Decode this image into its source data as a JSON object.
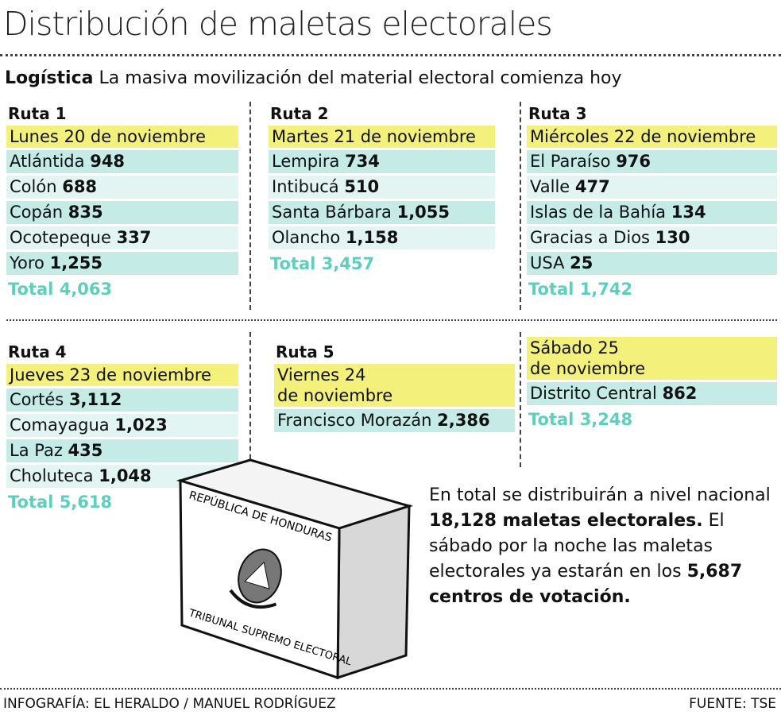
{
  "title": "Distribución de maletas electorales",
  "subtitle": {
    "lead": "Logística",
    "text": "La masiva movilización del material electoral comienza hoy"
  },
  "routes": [
    {
      "name": "Ruta 1",
      "date": "Lunes 20 de noviembre",
      "rows": [
        {
          "place": "Atlántida",
          "count": "948"
        },
        {
          "place": "Colón",
          "count": "688"
        },
        {
          "place": "Copán",
          "count": "835"
        },
        {
          "place": "Ocotepeque",
          "count": "337"
        },
        {
          "place": "Yoro",
          "count": "1,255"
        }
      ],
      "total": {
        "label": "Total",
        "value": "4,063"
      }
    },
    {
      "name": "Ruta 2",
      "date": "Martes 21 de noviembre",
      "rows": [
        {
          "place": "Lempira",
          "count": "734"
        },
        {
          "place": "Intibucá",
          "count": "510"
        },
        {
          "place": "Santa Bárbara",
          "count": "1,055"
        },
        {
          "place": "Olancho",
          "count": "1,158"
        }
      ],
      "total": {
        "label": "Total",
        "value": "3,457"
      }
    },
    {
      "name": "Ruta 3",
      "date": "Miércoles 22 de noviembre",
      "rows": [
        {
          "place": "El Paraíso",
          "count": "976"
        },
        {
          "place": "Valle",
          "count": "477"
        },
        {
          "place": "Islas de la Bahía",
          "count": "134"
        },
        {
          "place": "Gracias a Dios",
          "count": "130"
        },
        {
          "place": "USA",
          "count": "25"
        }
      ],
      "total": {
        "label": "Total",
        "value": "1,742"
      }
    },
    {
      "name": "Ruta 4",
      "date": "Jueves 23 de noviembre",
      "rows": [
        {
          "place": "Cortés",
          "count": "3,112"
        },
        {
          "place": "Comayagua",
          "count": "1,023"
        },
        {
          "place": "La Paz",
          "count": "435"
        },
        {
          "place": "Choluteca",
          "count": "1,048"
        }
      ],
      "total": {
        "label": "Total",
        "value": "5,618"
      }
    },
    {
      "name": "Ruta 5",
      "date": "Viernes 24\nde noviembre",
      "rows": [
        {
          "place": "Francisco Morazán",
          "count": "2,386"
        }
      ]
    },
    {
      "date": "Sábado 25\nde noviembre",
      "rows": [
        {
          "place": "Distrito Central",
          "count": "862"
        }
      ],
      "total": {
        "label": "Total",
        "value": "3,248"
      }
    }
  ],
  "summary": [
    {
      "text": "En total se distribuirán a nivel nacional",
      "bold": false
    },
    {
      "text": "18,128 maletas electorales.",
      "bold": true
    },
    {
      "text": "El sábado por la noche las maletas electorales ya estarán en los",
      "bold": false
    },
    {
      "text": "5,687 centros de votación.",
      "bold": true
    }
  ],
  "box": {
    "top_label": "REPÚBLICA DE HONDURAS",
    "bottom_label": "TRIBUNAL SUPREMO ELECTORAL"
  },
  "footer": {
    "credit": "INFOGRAFÍA: EL HERALDO / MANUEL RODRÍGUEZ",
    "source": "FUENTE: TSE"
  }
}
